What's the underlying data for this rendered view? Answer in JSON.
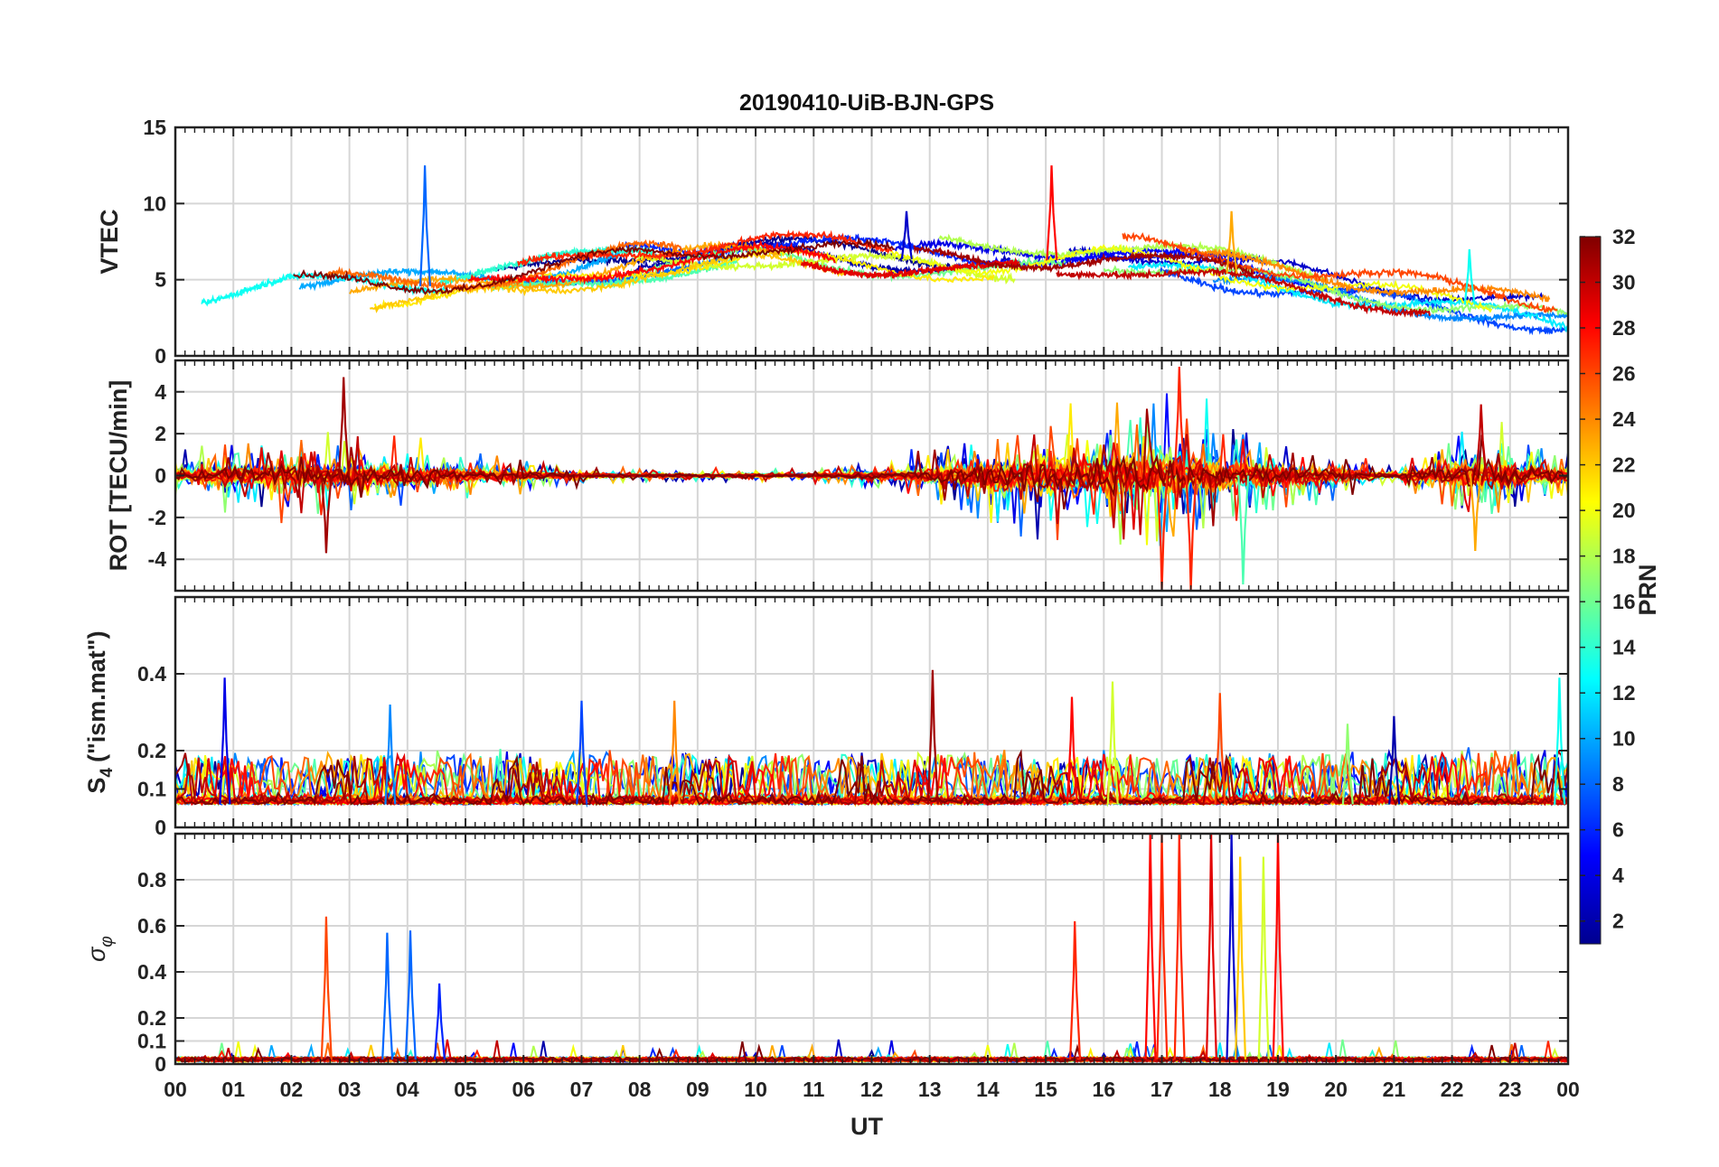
{
  "figure": {
    "title": "20190410-UiB-BJN-GPS",
    "xlabel": "UT",
    "x_ticks": [
      "00",
      "01",
      "02",
      "03",
      "04",
      "05",
      "06",
      "07",
      "08",
      "09",
      "10",
      "11",
      "12",
      "13",
      "14",
      "15",
      "16",
      "17",
      "18",
      "19",
      "20",
      "21",
      "22",
      "23",
      "00"
    ]
  },
  "colorbar": {
    "label": "PRN",
    "ticks": [
      "2",
      "4",
      "6",
      "8",
      "10",
      "12",
      "14",
      "16",
      "18",
      "20",
      "22",
      "24",
      "26",
      "28",
      "30",
      "32"
    ],
    "range": [
      1,
      32
    ],
    "colormap": [
      "#00008f",
      "#0000ff",
      "#0080ff",
      "#00ffff",
      "#80ff80",
      "#ffff00",
      "#ff8000",
      "#ff0000",
      "#800000"
    ]
  },
  "chart_data": [
    {
      "type": "line",
      "panel": "VTEC",
      "ylabel": "VTEC",
      "ylim": [
        0,
        15
      ],
      "yticks": [
        "0",
        "5",
        "10",
        "15"
      ],
      "xlim": [
        0,
        24
      ],
      "grid": true,
      "envelope": [
        {
          "x": 0,
          "y": 3.5
        },
        {
          "x": 2,
          "y": 4.5
        },
        {
          "x": 4,
          "y": 4.5
        },
        {
          "x": 6,
          "y": 5
        },
        {
          "x": 8,
          "y": 6.5
        },
        {
          "x": 10,
          "y": 7
        },
        {
          "x": 12,
          "y": 6.5
        },
        {
          "x": 14,
          "y": 6
        },
        {
          "x": 16,
          "y": 6.5
        },
        {
          "x": 18,
          "y": 5.5
        },
        {
          "x": 20,
          "y": 4.5
        },
        {
          "x": 22,
          "y": 3.5
        },
        {
          "x": 24,
          "y": 2.5
        }
      ],
      "peaks": [
        {
          "x": 4.3,
          "y": 12.5,
          "prn": 8
        },
        {
          "x": 12.6,
          "y": 9.5,
          "prn": 3
        },
        {
          "x": 15.1,
          "y": 12.5,
          "prn": 28
        },
        {
          "x": 18.2,
          "y": 9.5,
          "prn": 23
        },
        {
          "x": 22.3,
          "y": 7,
          "prn": 13
        }
      ]
    },
    {
      "type": "line",
      "panel": "ROT",
      "ylabel": "ROT [TECU/min]",
      "ylim": [
        -5.5,
        5.5
      ],
      "yticks": [
        "-4",
        "-2",
        "0",
        "2",
        "4"
      ],
      "xlim": [
        0,
        24
      ],
      "grid": true,
      "activity_amplitude": [
        {
          "x": 0,
          "y": 1.5
        },
        {
          "x": 2.5,
          "y": 3
        },
        {
          "x": 3.5,
          "y": 2.5
        },
        {
          "x": 5.5,
          "y": 1.2
        },
        {
          "x": 7,
          "y": 0.6
        },
        {
          "x": 9,
          "y": 0.4
        },
        {
          "x": 11,
          "y": 0.4
        },
        {
          "x": 12.5,
          "y": 1.2
        },
        {
          "x": 14,
          "y": 3.5
        },
        {
          "x": 17,
          "y": 5.5
        },
        {
          "x": 19,
          "y": 2.5
        },
        {
          "x": 21,
          "y": 0.6
        },
        {
          "x": 22.5,
          "y": 3.5
        },
        {
          "x": 24,
          "y": 1.5
        }
      ],
      "peaks": [
        {
          "x": 2.9,
          "y": 4.7,
          "prn": 31
        },
        {
          "x": 2.6,
          "y": -3.7,
          "prn": 31
        },
        {
          "x": 17.3,
          "y": 5.2,
          "prn": 27
        },
        {
          "x": 17.0,
          "y": -5.5,
          "prn": 27
        },
        {
          "x": 17.5,
          "y": -5.5,
          "prn": 27
        },
        {
          "x": 18.4,
          "y": -5.2,
          "prn": 15
        },
        {
          "x": 22.4,
          "y": -3.6,
          "prn": 23
        },
        {
          "x": 22.5,
          "y": 3.4,
          "prn": 30
        }
      ]
    },
    {
      "type": "line",
      "panel": "S4",
      "ylabel": "S4 (\"ism.mat\")",
      "ylabel_main": "S",
      "ylabel_sub": "4",
      "ylabel_rest": "(\"ism.mat\")",
      "ylim": [
        0,
        0.6
      ],
      "yticks": [
        "0",
        "0.1",
        "0.2",
        "0.4"
      ],
      "xlim": [
        0,
        24
      ],
      "grid": true,
      "baseline": 0.06,
      "peaks": [
        {
          "x": 0.85,
          "y": 0.39,
          "prn": 4
        },
        {
          "x": 3.7,
          "y": 0.32,
          "prn": 9
        },
        {
          "x": 7.0,
          "y": 0.33,
          "prn": 7
        },
        {
          "x": 8.6,
          "y": 0.33,
          "prn": 24
        },
        {
          "x": 13.05,
          "y": 0.41,
          "prn": 31
        },
        {
          "x": 15.45,
          "y": 0.34,
          "prn": 28
        },
        {
          "x": 16.15,
          "y": 0.38,
          "prn": 19
        },
        {
          "x": 18.0,
          "y": 0.35,
          "prn": 26
        },
        {
          "x": 20.2,
          "y": 0.27,
          "prn": 17
        },
        {
          "x": 21.0,
          "y": 0.29,
          "prn": 2
        },
        {
          "x": 23.85,
          "y": 0.39,
          "prn": 13
        }
      ]
    },
    {
      "type": "line",
      "panel": "sigma_phi",
      "ylabel": "σφ",
      "ylabel_main": "σ",
      "ylabel_sub": "φ",
      "ylim": [
        0,
        1
      ],
      "yticks": [
        "0",
        "0.1",
        "0.2",
        "0.4",
        "0.6",
        "0.8"
      ],
      "xlim": [
        0,
        24
      ],
      "grid": true,
      "baseline": 0.02,
      "peaks": [
        {
          "x": 2.6,
          "y": 0.64,
          "prn": 26
        },
        {
          "x": 3.65,
          "y": 0.57,
          "prn": 8
        },
        {
          "x": 4.05,
          "y": 0.58,
          "prn": 8
        },
        {
          "x": 4.55,
          "y": 0.35,
          "prn": 6
        },
        {
          "x": 15.5,
          "y": 0.62,
          "prn": 27
        },
        {
          "x": 16.8,
          "y": 1.0,
          "prn": 28
        },
        {
          "x": 17.0,
          "y": 1.0,
          "prn": 27
        },
        {
          "x": 17.3,
          "y": 1.0,
          "prn": 27
        },
        {
          "x": 17.85,
          "y": 1.0,
          "prn": 29
        },
        {
          "x": 18.2,
          "y": 1.0,
          "prn": 3
        },
        {
          "x": 18.35,
          "y": 0.9,
          "prn": 22
        },
        {
          "x": 18.75,
          "y": 0.9,
          "prn": 19
        },
        {
          "x": 19.0,
          "y": 1.0,
          "prn": 28
        }
      ]
    }
  ]
}
